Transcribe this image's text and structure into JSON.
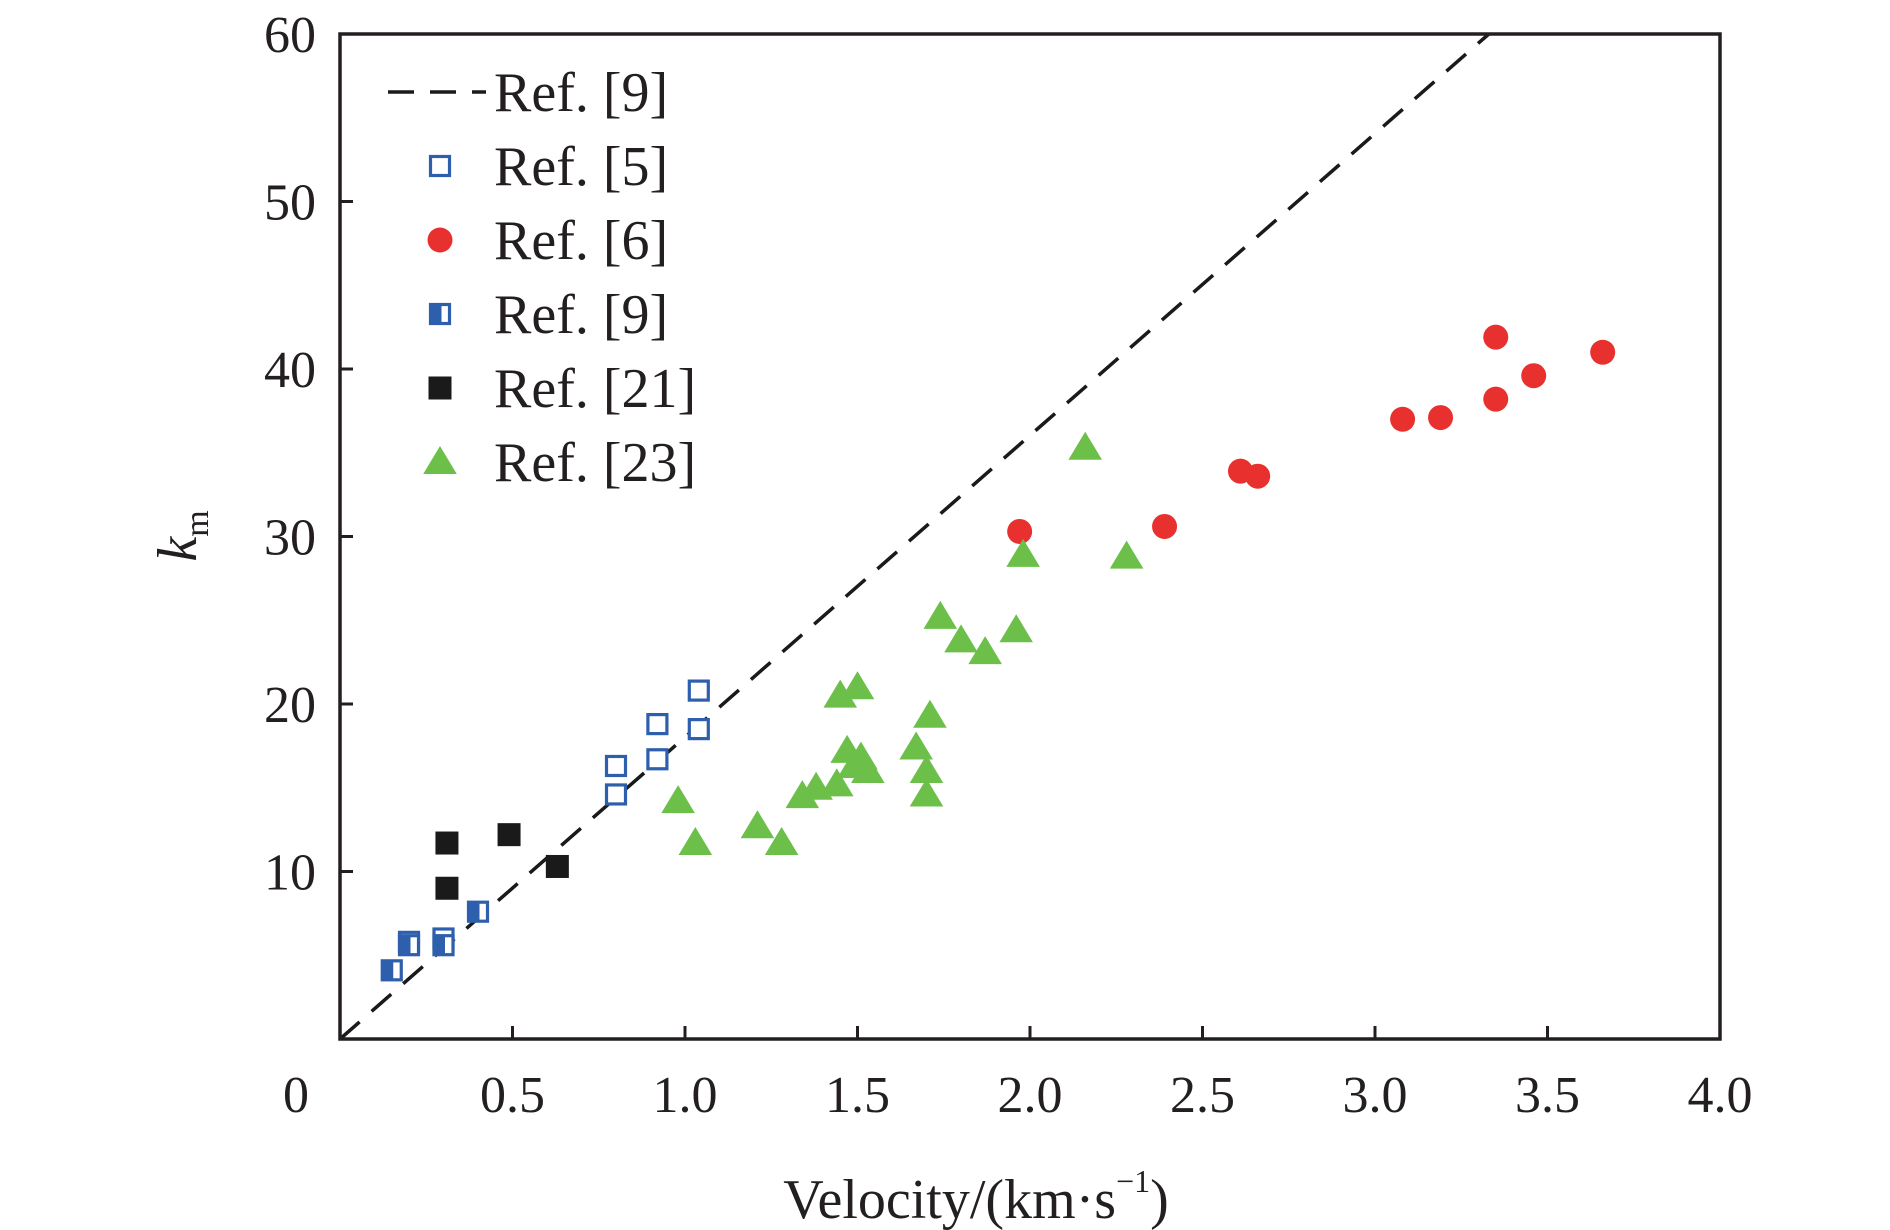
{
  "chart_data": {
    "type": "scatter",
    "xlabel": "Velocity/(km·s",
    "xlabel_superscript": "−1",
    "xlabel_close": ")",
    "ylabel_main": "k",
    "ylabel_sub": "m",
    "xlim": [
      0,
      4.0
    ],
    "ylim": [
      0,
      60
    ],
    "x_ticks": [
      0,
      0.5,
      1.0,
      1.5,
      2.0,
      2.5,
      3.0,
      3.5,
      4.0
    ],
    "x_tick_labels": [
      "0",
      "0.5",
      "1.0",
      "1.5",
      "2.0",
      "2.5",
      "3.0",
      "3.5",
      "4.0"
    ],
    "y_ticks": [
      10,
      20,
      30,
      40,
      50,
      60
    ],
    "y_tick_labels": [
      "10",
      "20",
      "30",
      "40",
      "50",
      "60"
    ],
    "grid": false,
    "legend_position": "top-left",
    "series": [
      {
        "name": "Ref. [9]",
        "kind": "line",
        "style": "dashed",
        "color": "#1a1a1a",
        "points": [
          [
            0,
            0
          ],
          [
            3.33,
            60
          ]
        ]
      },
      {
        "name": "Ref. [5]",
        "kind": "scatter",
        "marker": "square-open",
        "color": "#2e5fad",
        "points": [
          [
            0.8,
            16.3
          ],
          [
            0.8,
            14.6
          ],
          [
            0.92,
            18.8
          ],
          [
            0.92,
            16.7
          ],
          [
            1.04,
            20.8
          ],
          [
            1.04,
            18.5
          ],
          [
            0.3,
            6.0
          ],
          [
            0.2,
            5.8
          ]
        ]
      },
      {
        "name": "Ref. [6]",
        "kind": "scatter",
        "marker": "circle",
        "color": "#e8312f",
        "points": [
          [
            1.97,
            30.3
          ],
          [
            2.39,
            30.6
          ],
          [
            2.61,
            33.9
          ],
          [
            2.66,
            33.6
          ],
          [
            3.08,
            37.0
          ],
          [
            3.19,
            37.1
          ],
          [
            3.35,
            41.9
          ],
          [
            3.35,
            38.2
          ],
          [
            3.46,
            39.6
          ],
          [
            3.66,
            41.0
          ]
        ]
      },
      {
        "name": "Ref. [9]",
        "kind": "scatter",
        "marker": "square-half",
        "color": "#2e5fad",
        "points": [
          [
            0.15,
            4.1
          ],
          [
            0.2,
            5.6
          ],
          [
            0.3,
            5.6
          ],
          [
            0.4,
            7.6
          ]
        ]
      },
      {
        "name": "Ref. [21]",
        "kind": "scatter",
        "marker": "square",
        "color": "#1a1a1a",
        "points": [
          [
            0.31,
            11.7
          ],
          [
            0.31,
            9.0
          ],
          [
            0.49,
            12.2
          ],
          [
            0.63,
            10.3
          ]
        ]
      },
      {
        "name": "Ref. [23]",
        "kind": "scatter",
        "marker": "triangle",
        "color": "#6cc04a",
        "points": [
          [
            0.98,
            14.2
          ],
          [
            1.03,
            11.7
          ],
          [
            1.21,
            12.7
          ],
          [
            1.28,
            11.7
          ],
          [
            1.34,
            14.5
          ],
          [
            1.38,
            15.0
          ],
          [
            1.44,
            15.2
          ],
          [
            1.45,
            20.5
          ],
          [
            1.47,
            17.2
          ],
          [
            1.49,
            16.3
          ],
          [
            1.5,
            21.0
          ],
          [
            1.51,
            16.8
          ],
          [
            1.53,
            16.0
          ],
          [
            1.67,
            17.4
          ],
          [
            1.7,
            14.6
          ],
          [
            1.7,
            16.0
          ],
          [
            1.71,
            19.3
          ],
          [
            1.74,
            25.2
          ],
          [
            1.8,
            23.8
          ],
          [
            1.87,
            23.1
          ],
          [
            1.96,
            24.4
          ],
          [
            1.98,
            28.9
          ],
          [
            2.16,
            35.3
          ],
          [
            2.28,
            28.8
          ]
        ]
      }
    ]
  }
}
